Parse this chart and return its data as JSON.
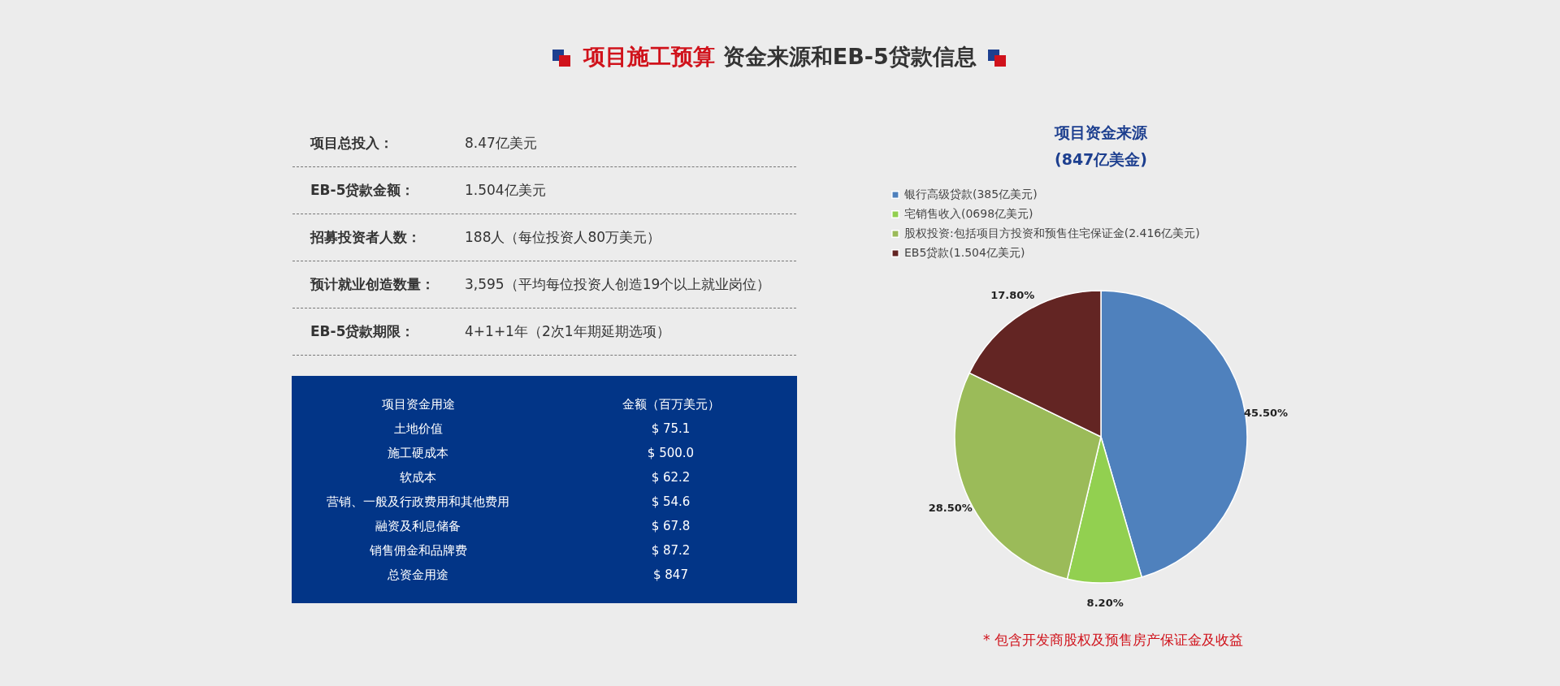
{
  "chart_data": [
    {
      "type": "other",
      "title": "项目施工预算 资金来源和EB-5贷款信息",
      "annotations": [
        "项目总投入：",
        "8.47亿美元",
        "EB-5贷款金额：",
        "1.504亿美元",
        "招募投资者人数：",
        "188人（每位投资人80万美元）",
        "预计就业创造数量：",
        "3,595（平均每位投资人创造19个以上就业岗位）",
        "EB-5贷款期限：",
        "4+1+1年（2次1年期延期选项）"
      ]
    },
    {
      "type": "other",
      "annotations": [
        "项目资金用途",
        "金额（百万美元）",
        "土地价值",
        "$ 75.1",
        "施工硬成本",
        "$ 500.0",
        "软成本",
        "$ 62.2",
        "营销、一般及行政费用和其他费用",
        "$ 54.6",
        "融资及利息储备",
        "$ 67.8",
        "销售佣金和品牌费",
        "$ 87.2",
        "总资金用途",
        "$ 847"
      ]
    },
    {
      "type": "pie",
      "title": "项目资金来源",
      "subtitle": "(847亿美金)",
      "categories": [
        "银行高级贷款(385亿美元)",
        "宅销售收入(0698亿美元)",
        "股权投资:包括项目方投资和预售住宅保证金(2.416亿美元)",
        "EB5贷款(1.504亿美元)"
      ],
      "values": [
        45.5,
        8.2,
        28.5,
        17.8
      ],
      "colors": [
        "#4f81bd",
        "#92d050",
        "#9bbb59",
        "#632523"
      ],
      "value_labels": [
        "45.50%",
        "8.20%",
        "28.50%",
        "17.80%"
      ],
      "legend": "top",
      "annotations": [
        "* 包含开发商股权及预售房产保证金及收益"
      ]
    }
  ]
}
